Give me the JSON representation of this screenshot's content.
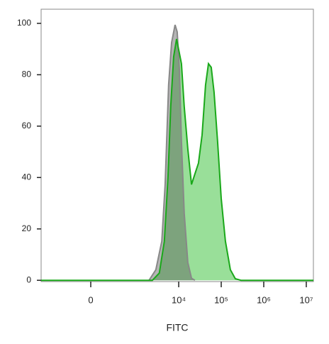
{
  "chart_data": {
    "type": "area",
    "x_label": "FITC",
    "xscale": {
      "type": "asinh",
      "cofactor": 171
    },
    "xlim": [
      -1250,
      14700000
    ],
    "xticks": [
      0,
      {
        "value": 10000,
        "label": "10⁴"
      },
      {
        "value": 100000,
        "label": "10⁵"
      },
      {
        "value": 1000000,
        "label": "10⁶"
      },
      {
        "value": 10000000,
        "label": "10⁷"
      }
    ],
    "ylim": [
      -0.5,
      105.5
    ],
    "yticks": [
      0,
      20,
      40,
      60,
      80,
      100
    ],
    "series": [
      {
        "color": "#1aa81a",
        "fill": "rgba(110,210,110,0.7)",
        "x": [
          -1250,
          2400,
          3500,
          4600,
          5600,
          6500,
          7600,
          8900,
          10000,
          11600,
          13500,
          16400,
          20000,
          24100,
          29200,
          35400,
          42800,
          50000,
          58200,
          67900,
          82300,
          100000,
          125500,
          164000,
          215000,
          292000,
          14700000
        ],
        "values": [
          0,
          0,
          2.8,
          15.2,
          40,
          67.7,
          87,
          93.9,
          89.8,
          84.3,
          67.7,
          51.1,
          37.3,
          41.4,
          45.6,
          56.6,
          76,
          84.3,
          82.9,
          73.2,
          53.9,
          31.8,
          15.2,
          4.1,
          0.6,
          0,
          0
        ]
      },
      {
        "color": "#888888",
        "fill": "rgba(90,90,90,0.45)",
        "x": [
          2000,
          2900,
          4000,
          4800,
          5800,
          6800,
          8200,
          9200,
          10400,
          11600,
          13500,
          16400,
          20000,
          24100
        ],
        "values": [
          0,
          4.1,
          15.2,
          37.3,
          76,
          92.5,
          99.4,
          96.7,
          81.5,
          53.9,
          26.2,
          6.9,
          0.8,
          0
        ]
      }
    ]
  }
}
